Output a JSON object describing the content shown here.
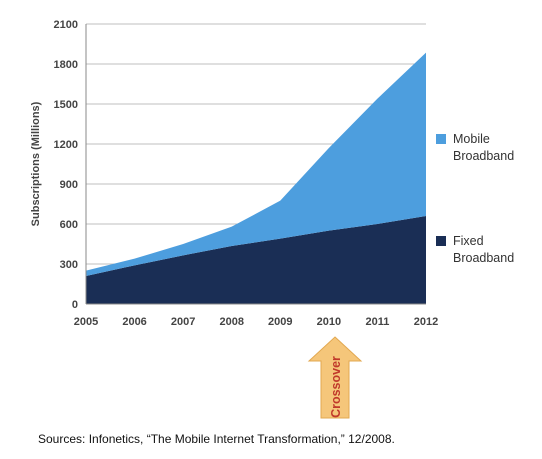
{
  "chart_data": {
    "type": "area",
    "stacked": true,
    "x": [
      "2005",
      "2006",
      "2007",
      "2008",
      "2009",
      "2010",
      "2011",
      "2012"
    ],
    "series": [
      {
        "name": "Fixed Broadband",
        "color": "#1a2e55",
        "values": [
          210,
          290,
          365,
          435,
          490,
          550,
          600,
          660
        ]
      },
      {
        "name": "Mobile Broadband",
        "color": "#4d9ede",
        "values": [
          40,
          50,
          85,
          145,
          285,
          620,
          940,
          1225
        ]
      }
    ],
    "ylabel": "Subscriptions (Millions)",
    "yticks": [
      0,
      300,
      600,
      900,
      1200,
      1500,
      1800,
      2100
    ],
    "ylim": [
      0,
      2100
    ],
    "grid": true,
    "legend_position": "right",
    "annotation": {
      "label": "Crossover",
      "x": "2010",
      "color": "#f5c67a"
    }
  },
  "legend": {
    "mobile": {
      "line1": "Mobile",
      "line2": "Broadband"
    },
    "fixed": {
      "line1": "Fixed",
      "line2": "Broadband"
    }
  },
  "source": "Sources: Infonetics, “The Mobile Internet Transformation,” 12/2008."
}
